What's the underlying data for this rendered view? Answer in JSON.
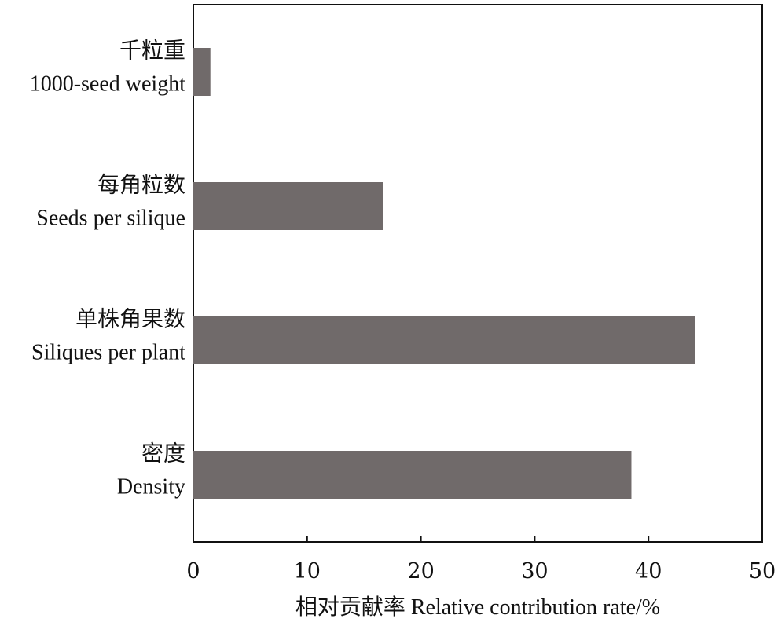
{
  "chart_data": {
    "type": "bar",
    "orientation": "horizontal",
    "categories": [
      {
        "cn": "千粒重",
        "en": "1000-seed weight"
      },
      {
        "cn": "每角粒数",
        "en": "Seeds per silique"
      },
      {
        "cn": "单株角果数",
        "en": "Siliques per plant"
      },
      {
        "cn": "密度",
        "en": "Density"
      }
    ],
    "values": [
      1.5,
      16.7,
      44.1,
      38.5
    ],
    "xlabel": "相对贡献率 Relative contribution rate/%",
    "xlim": [
      0,
      50
    ],
    "xticks": [
      "0",
      "10",
      "20",
      "30",
      "40",
      "50"
    ],
    "grid": false,
    "colors": {
      "bar": "#706a6a",
      "axis": "#111111"
    }
  }
}
